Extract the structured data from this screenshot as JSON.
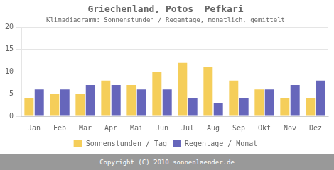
{
  "chart_data": {
    "type": "bar",
    "title": "Griechenland, Potos  Pefkari",
    "subtitle": "Klimadiagramm: Sonnenstunden / Regentage, monatlich, gemittelt",
    "annotations": [
      "Copyright (C) 2010 sonnenlaender.de"
    ],
    "categories": [
      "Jan",
      "Feb",
      "Mar",
      "Apr",
      "Mai",
      "Jun",
      "Jul",
      "Aug",
      "Sep",
      "Okt",
      "Nov",
      "Dez"
    ],
    "series": [
      {
        "name": "Sonnenstunden / Tag",
        "color": "#F5CE5A",
        "values": [
          4,
          5,
          5,
          8,
          7,
          10,
          12,
          11,
          8,
          6,
          4,
          4
        ]
      },
      {
        "name": "Regentage / Monat",
        "color": "#6666BB",
        "values": [
          6,
          6,
          7,
          7,
          6,
          6,
          4,
          3,
          4,
          6,
          7,
          8
        ]
      }
    ],
    "ylim": [
      0,
      20
    ],
    "yticks": [
      0,
      5,
      10,
      15,
      20
    ],
    "grid": true,
    "legend": "bottom"
  }
}
